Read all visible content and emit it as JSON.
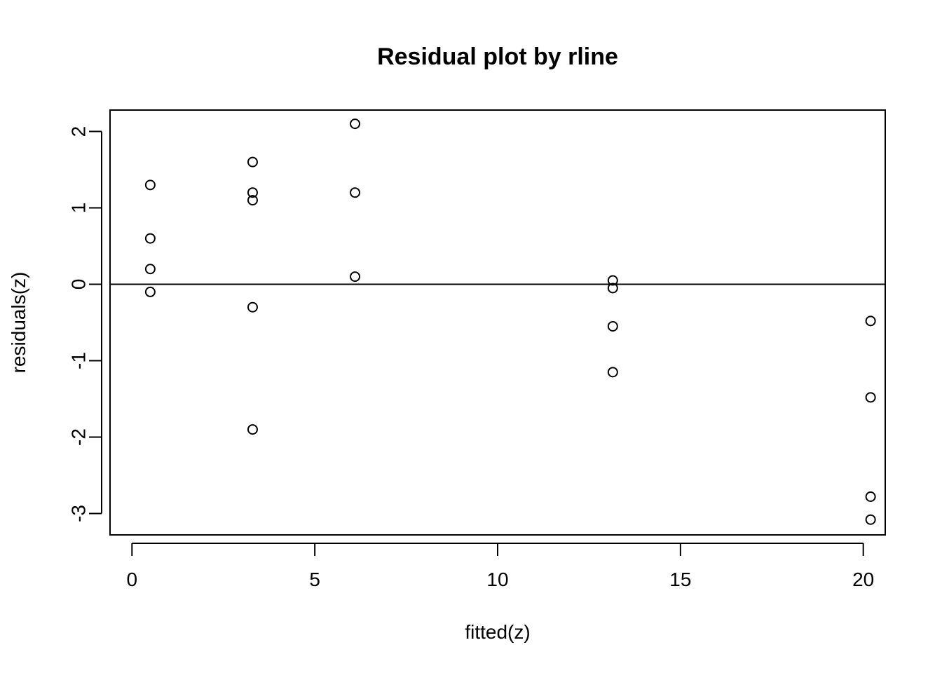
{
  "chart_data": {
    "type": "scatter",
    "title": "Residual plot by rline",
    "xlabel": "fitted(z)",
    "ylabel": "residuals(z)",
    "xlim": [
      -0.6,
      20.6
    ],
    "ylim": [
      -3.28,
      2.28
    ],
    "xticks": [
      0,
      5,
      10,
      15,
      20
    ],
    "yticks": [
      -3,
      -2,
      -1,
      0,
      1,
      2
    ],
    "xtick_labels": [
      "0",
      "5",
      "10",
      "15",
      "20"
    ],
    "ytick_labels": [
      "-3",
      "-2",
      "-1",
      "0",
      "1",
      "2"
    ],
    "reference_line": {
      "orientation": "horizontal",
      "y": 0
    },
    "marker": "open-circle",
    "grid": false,
    "series": [
      {
        "x": [
          0.5,
          0.5,
          0.5,
          0.5,
          3.3,
          3.3,
          3.3,
          3.3,
          3.3,
          6.1,
          6.1,
          6.1,
          13.15,
          13.15,
          13.15,
          13.15,
          20.2,
          20.2,
          20.2,
          20.2
        ],
        "y": [
          1.3,
          0.6,
          0.2,
          -0.1,
          1.6,
          1.2,
          1.1,
          -0.3,
          -1.9,
          2.1,
          1.2,
          0.1,
          0.05,
          -0.05,
          -0.55,
          -1.15,
          -0.48,
          -1.48,
          -2.78,
          -3.08
        ]
      }
    ]
  }
}
